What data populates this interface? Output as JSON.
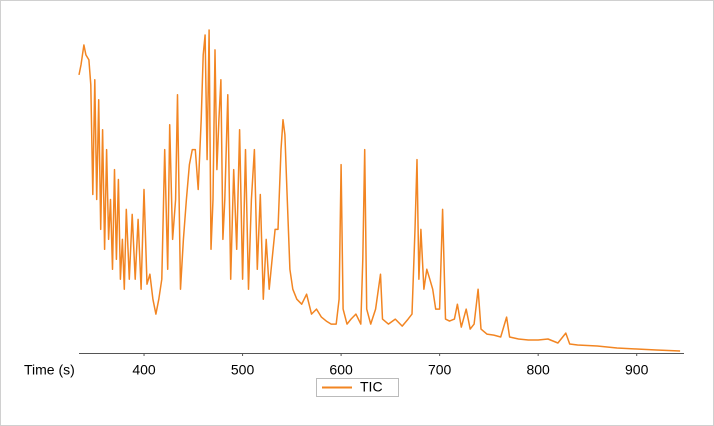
{
  "chart_data": {
    "type": "line",
    "x_label": "Time (s)",
    "x": [
      334,
      336,
      339,
      341,
      344,
      346,
      348,
      350,
      352,
      354,
      356,
      358,
      360,
      362,
      364,
      366,
      368,
      370,
      372,
      374,
      376,
      378,
      380,
      382,
      385,
      388,
      391,
      394,
      397,
      400,
      403,
      406,
      409,
      412,
      415,
      418,
      421,
      424,
      426,
      429,
      432,
      434,
      437,
      440,
      443,
      446,
      449,
      452,
      455,
      458,
      460,
      462,
      464,
      466,
      468,
      470,
      472,
      474,
      476,
      478,
      480,
      482,
      485,
      488,
      491,
      494,
      497,
      500,
      503,
      506,
      509,
      512,
      515,
      518,
      521,
      524,
      527,
      530,
      533,
      536,
      539,
      541,
      543,
      545,
      548,
      551,
      555,
      560,
      565,
      570,
      575,
      580,
      585,
      590,
      595,
      598,
      600,
      602,
      606,
      610,
      615,
      620,
      622,
      624,
      626,
      630,
      635,
      640,
      642,
      648,
      655,
      662,
      668,
      672,
      675,
      677,
      679,
      681,
      684,
      687,
      690,
      693,
      696,
      700,
      703,
      706,
      710,
      715,
      718,
      722,
      727,
      731,
      735,
      739,
      742,
      748,
      755,
      762,
      768,
      771,
      780,
      790,
      800,
      810,
      820,
      828,
      832,
      840,
      860,
      880,
      900,
      920,
      944
    ],
    "series": [
      {
        "name": "TIC",
        "color": "#f28522",
        "values": [
          279,
          289,
          309,
          299,
          294,
          269,
          159,
          274,
          154,
          254,
          124,
          224,
          104,
          204,
          114,
          154,
          84,
          184,
          94,
          174,
          74,
          114,
          64,
          144,
          74,
          139,
          74,
          134,
          64,
          164,
          69,
          79,
          54,
          39,
          54,
          74,
          204,
          84,
          229,
          114,
          154,
          259,
          64,
          114,
          154,
          189,
          204,
          204,
          164,
          234,
          299,
          319,
          194,
          324,
          104,
          154,
          304,
          184,
          234,
          274,
          114,
          154,
          259,
          74,
          184,
          104,
          224,
          74,
          204,
          64,
          154,
          204,
          84,
          159,
          54,
          114,
          64,
          94,
          124,
          124,
          204,
          234,
          219,
          164,
          84,
          64,
          54,
          49,
          59,
          39,
          44,
          36,
          32,
          29,
          29,
          54,
          189,
          44,
          29,
          34,
          39,
          29,
          94,
          204,
          44,
          29,
          44,
          79,
          34,
          29,
          34,
          27,
          34,
          39,
          124,
          194,
          74,
          124,
          64,
          84,
          74,
          64,
          44,
          44,
          144,
          34,
          32,
          34,
          49,
          26,
          44,
          24,
          29,
          64,
          24,
          19,
          18,
          16,
          36,
          16,
          14,
          13,
          13,
          14,
          10,
          20,
          9,
          8,
          7,
          5,
          4,
          3,
          2
        ]
      }
    ],
    "xlim": [
      334,
      948
    ],
    "xticks": [
      400,
      500,
      600,
      700,
      800,
      900
    ],
    "ylim": [
      0,
      324
    ],
    "legend": "bottom"
  }
}
